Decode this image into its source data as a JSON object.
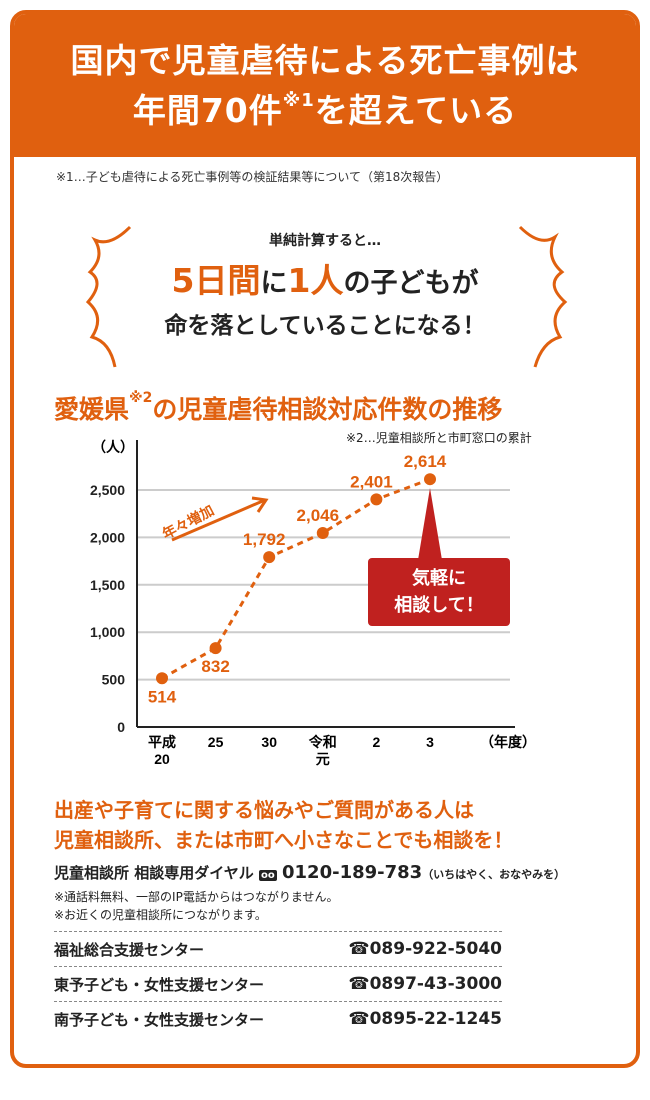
{
  "header": {
    "line1": "国内で児童虐待による死亡事例は",
    "line2a": "年間70件",
    "sup": "※1",
    "line2b": "を超えている"
  },
  "note1": "※1…子ども虐待による死亡事例等の検証結果等について（第18次報告）",
  "burst": {
    "small": "単純計算すると…",
    "p1": "5日間",
    "p2": "に",
    "p3": "1人",
    "p4": "の子どもが",
    "line2": "命を落としていることになる！"
  },
  "chart_title": {
    "a": "愛媛県",
    "sup": "※2",
    "b": "の児童虐待相談対応件数の推移"
  },
  "note2": "※2…児童相談所と市町窓口の累計",
  "increase_label": "年々増加",
  "callout": {
    "l1": "気軽に",
    "l2": "相談して！"
  },
  "colors": {
    "accent": "#e0600f",
    "callout": "#c0211f"
  },
  "chart_data": {
    "type": "line",
    "title": "愛媛県の児童虐待相談対応件数の推移",
    "ylabel": "（人）",
    "xlabel": "（年度）",
    "categories": [
      [
        "平成",
        "20"
      ],
      [
        "25",
        ""
      ],
      [
        "30",
        ""
      ],
      [
        "令和",
        "元"
      ],
      [
        "2",
        ""
      ],
      [
        "3",
        ""
      ]
    ],
    "values": [
      514,
      832,
      1792,
      2046,
      2401,
      2614
    ],
    "value_labels": [
      "514",
      "832",
      "1,792",
      "2,046",
      "2,401",
      "2,614"
    ],
    "yticks": [
      0,
      500,
      1000,
      1500,
      2000,
      2500
    ],
    "ytick_labels": [
      "0",
      "500",
      "1,000",
      "1,500",
      "2,000",
      "2,500"
    ],
    "ylim": [
      0,
      2800
    ],
    "grid": true
  },
  "message": {
    "l1": "出産や子育てに関する悩みやご質問がある人は",
    "l2": "児童相談所、または市町へ小さなことでも相談を！"
  },
  "dial": {
    "label": "児童相談所 相談専用ダイヤル",
    "number": "0120-189-783",
    "reading": "（いちはやく、おなやみを）"
  },
  "notes": [
    "※通話料無料、一部のIP電話からはつながりません。",
    "※お近くの児童相談所につながります。"
  ],
  "contacts": [
    {
      "name": "福祉総合支援センター",
      "tel": "089-922-5040"
    },
    {
      "name": "東予子ども・女性支援センター",
      "tel": "0897-43-3000"
    },
    {
      "name": "南予子ども・女性支援センター",
      "tel": "0895-22-1245"
    }
  ]
}
